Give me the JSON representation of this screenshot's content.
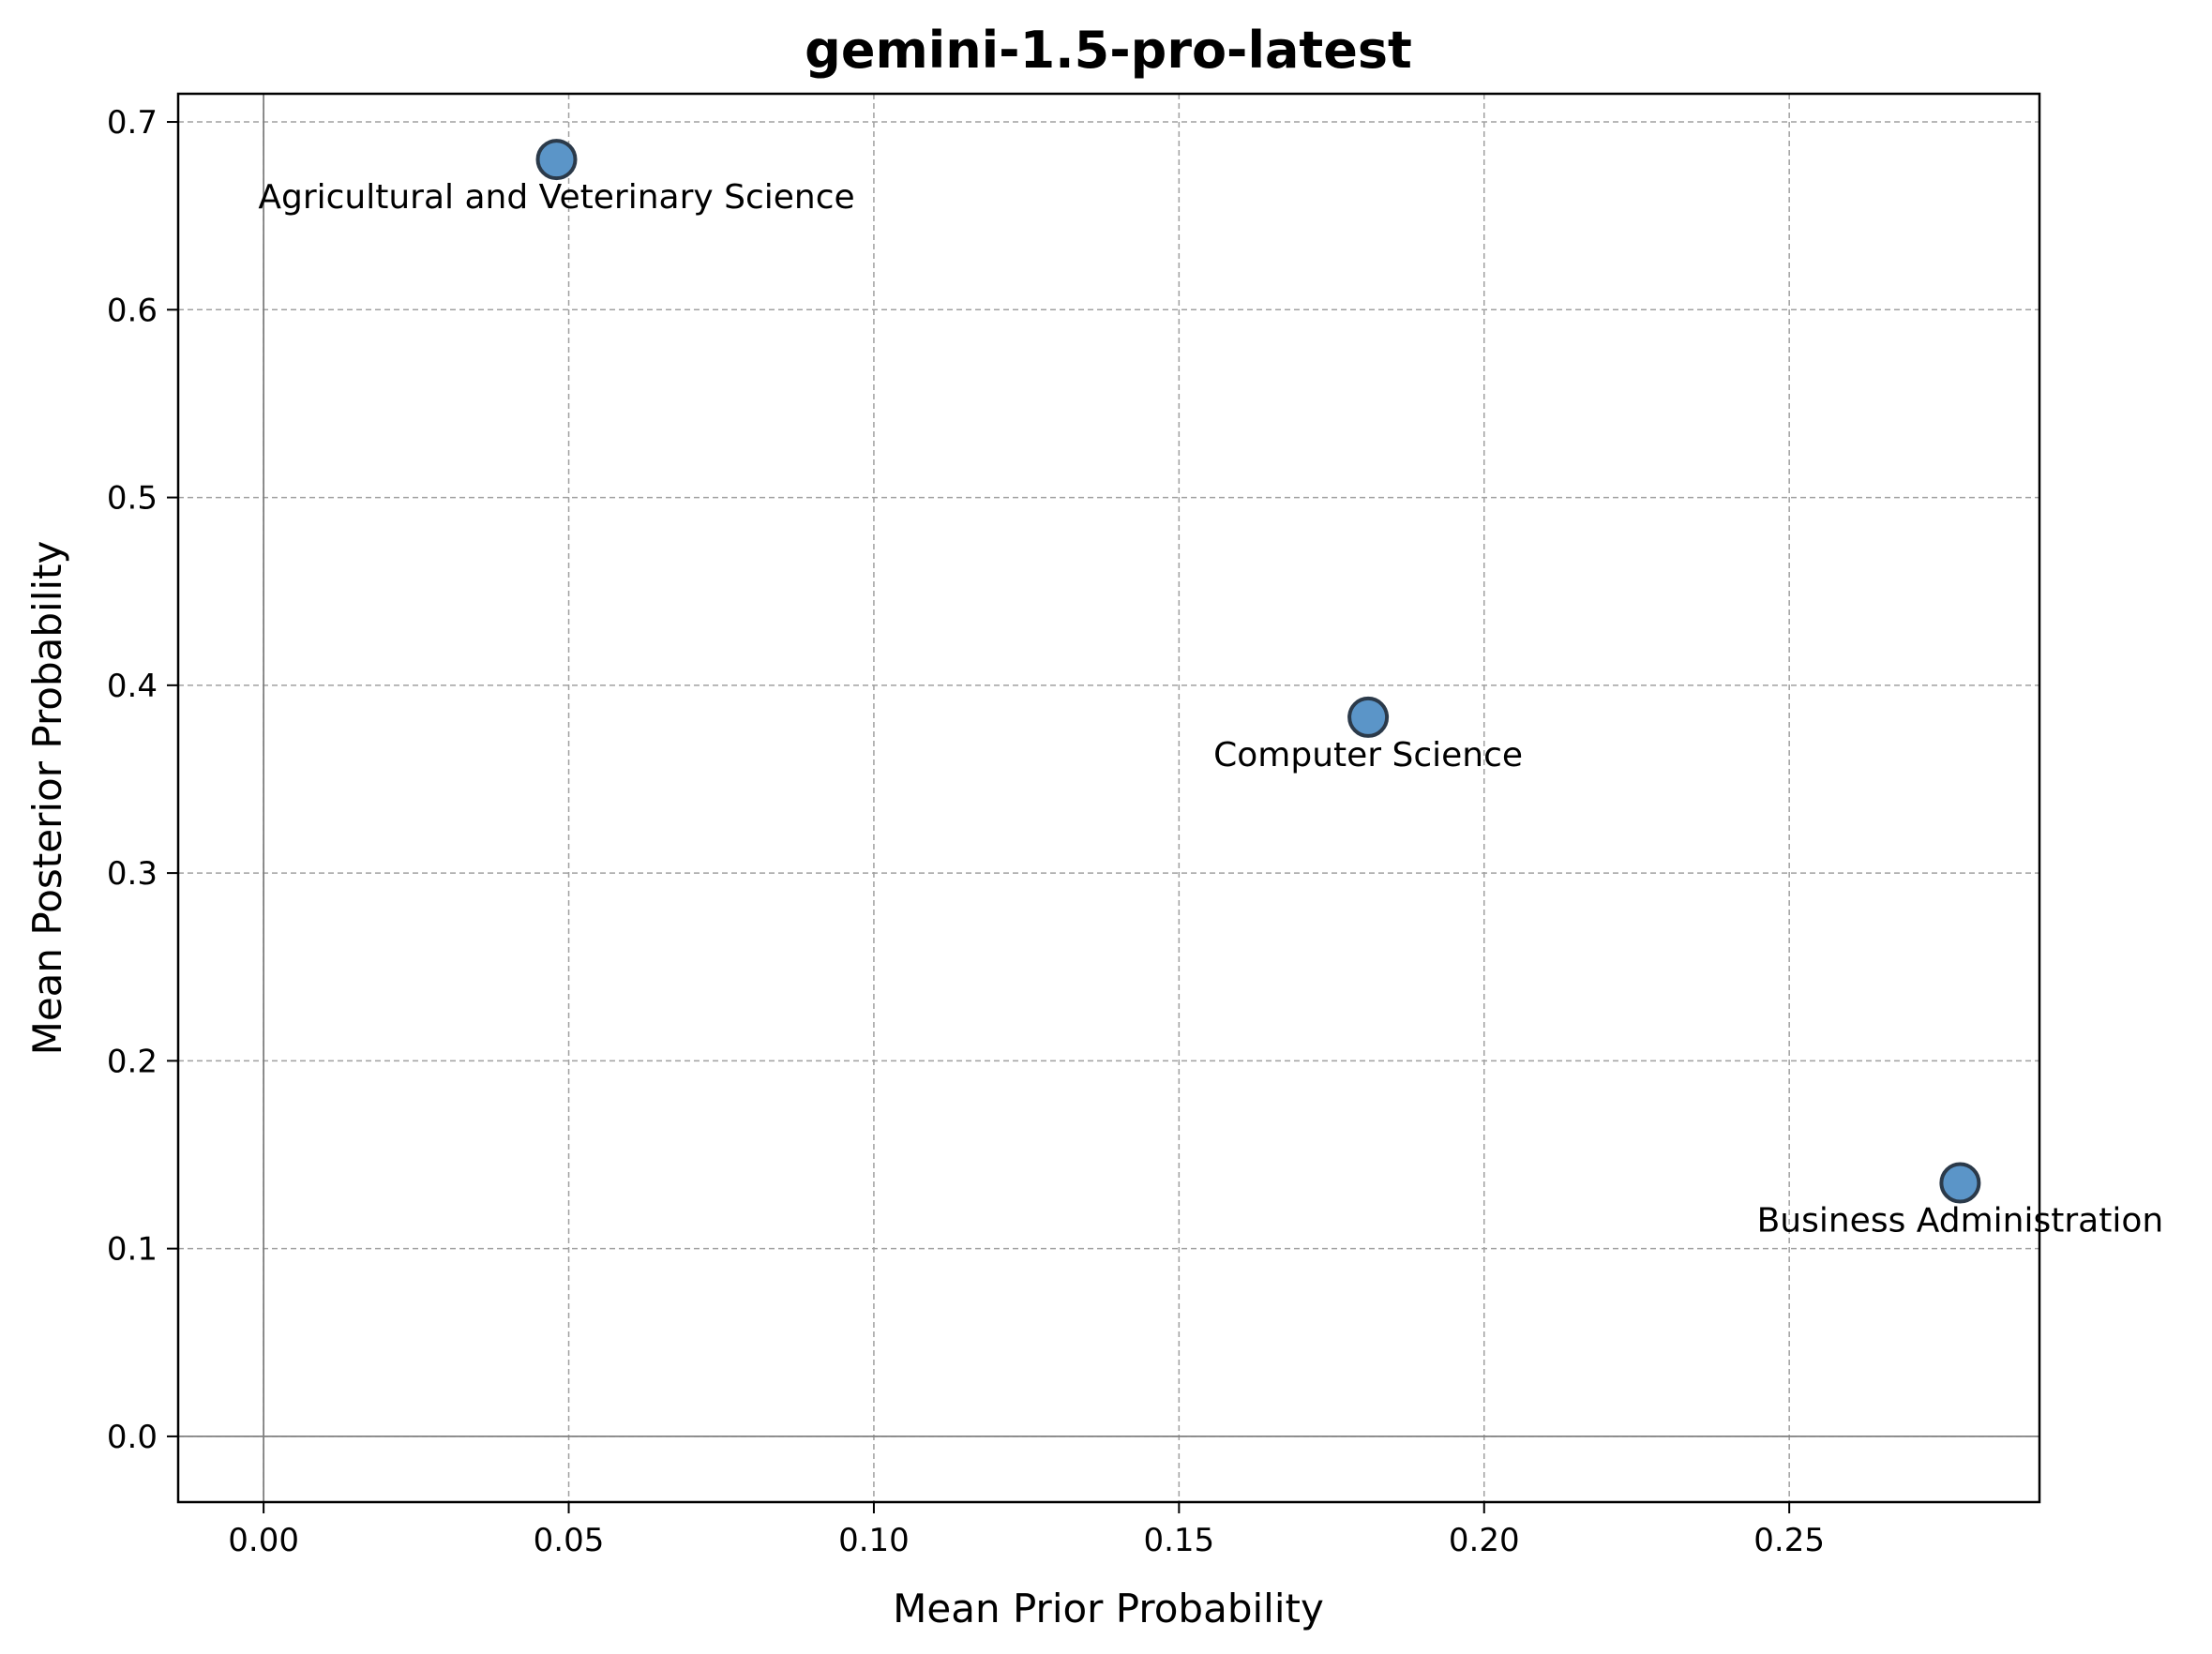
{
  "chart_data": {
    "type": "scatter",
    "title": "gemini-1.5-pro-latest",
    "xlabel": "Mean Prior Probability",
    "ylabel": "Mean Posterior Probability",
    "xlim": [
      -0.014,
      0.291
    ],
    "ylim": [
      -0.035,
      0.715
    ],
    "xticks": [
      0.0,
      0.05,
      0.1,
      0.15,
      0.2,
      0.25
    ],
    "xtick_labels": [
      "0.00",
      "0.05",
      "0.10",
      "0.15",
      "0.20",
      "0.25"
    ],
    "yticks": [
      0.0,
      0.1,
      0.2,
      0.3,
      0.4,
      0.5,
      0.6,
      0.7
    ],
    "ytick_labels": [
      "0.0",
      "0.1",
      "0.2",
      "0.3",
      "0.4",
      "0.5",
      "0.6",
      "0.7"
    ],
    "grid": true,
    "reference_lines": {
      "x": 0,
      "y": 0
    },
    "marker_color": "#5b95c8",
    "marker_edge_color": "#2b3a4a",
    "points": [
      {
        "label": "Agricultural and Veterinary Science",
        "x": 0.048,
        "y": 0.68
      },
      {
        "label": "Computer Science",
        "x": 0.181,
        "y": 0.383
      },
      {
        "label": "Business Administration",
        "x": 0.278,
        "y": 0.135
      }
    ]
  }
}
